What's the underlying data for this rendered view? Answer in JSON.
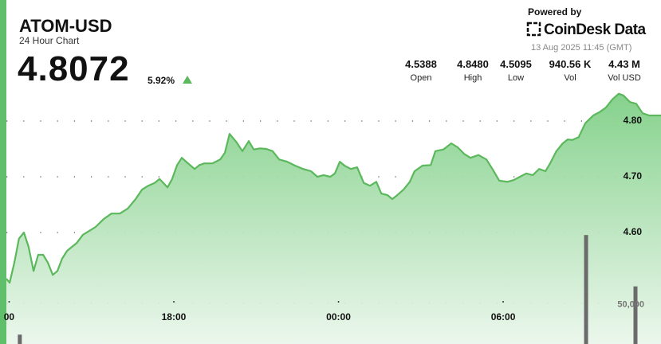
{
  "header": {
    "title": "ATOM-USD",
    "subtitle": "24 Hour Chart",
    "price": "4.8072",
    "change": "5.92%",
    "powered_by": "Powered by",
    "brand": "CoinDesk Data",
    "timestamp": "13 Aug 2025 11:45 (GMT)",
    "stats": [
      {
        "value": "4.5388",
        "label": "Open"
      },
      {
        "value": "4.8480",
        "label": "High"
      },
      {
        "value": "4.5095",
        "label": "Low"
      },
      {
        "value": "940.56 K",
        "label": "Vol"
      },
      {
        "value": "4.43 M",
        "label": "Vol USD"
      }
    ]
  },
  "chart_data": {
    "type": "line",
    "xlim": [
      -0.1,
      23.75
    ],
    "xticks": [
      {
        "value": 0,
        "label": "00"
      },
      {
        "value": 6,
        "label": "18:00"
      },
      {
        "value": 12,
        "label": "00:00"
      },
      {
        "value": 18,
        "label": "06:00"
      }
    ],
    "ylim": [
      4.4,
      4.85
    ],
    "yticks": [
      {
        "value": 4.6,
        "label": "4.60"
      },
      {
        "value": 4.7,
        "label": "4.70"
      },
      {
        "value": 4.8,
        "label": "4.80"
      }
    ],
    "y2lim": [
      0,
      320000
    ],
    "y2ticks": [
      {
        "value": 50000,
        "label": "50,000"
      }
    ],
    "grid": true,
    "series": [
      {
        "color": "#5cb85c",
        "x": [
          -0.1,
          0.02,
          0.19,
          0.36,
          0.54,
          0.71,
          0.89,
          1.06,
          1.24,
          1.41,
          1.59,
          1.76,
          1.93,
          2.11,
          2.28,
          2.46,
          2.69,
          2.92,
          3.15,
          3.44,
          3.73,
          4.03,
          4.32,
          4.61,
          4.84,
          5.07,
          5.3,
          5.48,
          5.77,
          5.94,
          6.12,
          6.29,
          6.52,
          6.76,
          6.93,
          7.11,
          7.4,
          7.69,
          7.86,
          8.03,
          8.27,
          8.5,
          8.73,
          8.91,
          9.14,
          9.37,
          9.6,
          9.84,
          10.13,
          10.42,
          10.71,
          11.0,
          11.23,
          11.46,
          11.7,
          11.87,
          12.05,
          12.22,
          12.45,
          12.68,
          12.92,
          13.15,
          13.38,
          13.56,
          13.79,
          13.96,
          14.14,
          14.37,
          14.6,
          14.77,
          15.06,
          15.36,
          15.53,
          15.82,
          16.11,
          16.34,
          16.58,
          16.81,
          17.1,
          17.39,
          17.62,
          17.86,
          18.15,
          18.38,
          18.61,
          18.84,
          19.08,
          19.31,
          19.54,
          19.71,
          19.94,
          20.17,
          20.35,
          20.52,
          20.75,
          20.99,
          21.28,
          21.51,
          21.74,
          21.98,
          22.21,
          22.38,
          22.62,
          22.85,
          23.08,
          23.32,
          23.55,
          23.75
        ],
        "values": [
          4.517,
          4.51,
          4.546,
          4.589,
          4.6,
          4.574,
          4.531,
          4.56,
          4.56,
          4.546,
          4.524,
          4.531,
          4.553,
          4.567,
          4.574,
          4.581,
          4.596,
          4.603,
          4.61,
          4.624,
          4.634,
          4.634,
          4.643,
          4.66,
          4.677,
          4.684,
          4.689,
          4.696,
          4.681,
          4.696,
          4.721,
          4.734,
          4.724,
          4.714,
          4.721,
          4.724,
          4.724,
          4.731,
          4.743,
          4.777,
          4.763,
          4.746,
          4.764,
          4.749,
          4.751,
          4.75,
          4.746,
          4.731,
          4.727,
          4.72,
          4.714,
          4.71,
          4.7,
          4.703,
          4.7,
          4.706,
          4.727,
          4.72,
          4.714,
          4.717,
          4.689,
          4.684,
          4.691,
          4.67,
          4.667,
          4.66,
          4.667,
          4.677,
          4.691,
          4.71,
          4.72,
          4.721,
          4.746,
          4.749,
          4.76,
          4.753,
          4.741,
          4.734,
          4.739,
          4.731,
          4.713,
          4.693,
          4.691,
          4.694,
          4.7,
          4.706,
          4.703,
          4.714,
          4.71,
          4.724,
          4.746,
          4.76,
          4.767,
          4.766,
          4.771,
          4.796,
          4.81,
          4.816,
          4.824,
          4.839,
          4.849,
          4.846,
          4.834,
          4.831,
          4.814,
          4.81,
          4.81,
          4.81
        ]
      },
      {
        "color": "#6b6b6b",
        "axis": "y2",
        "x": [
          0.39,
          21.02,
          22.82
        ],
        "values": [
          12000,
          139000,
          73500
        ]
      }
    ]
  }
}
